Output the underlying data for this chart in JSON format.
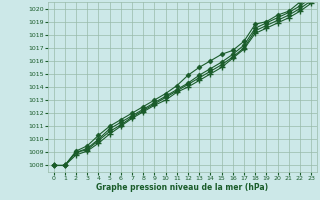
{
  "xlabel": "Graphe pression niveau de la mer (hPa)",
  "bg_color": "#cce8e8",
  "grid_color": "#99bbaa",
  "line_color": "#1a5c2a",
  "marker_color": "#1a5c2a",
  "x": [
    0,
    1,
    2,
    3,
    4,
    5,
    6,
    7,
    8,
    9,
    10,
    11,
    12,
    13,
    14,
    15,
    16,
    17,
    18,
    19,
    20,
    21,
    22,
    23
  ],
  "series": [
    [
      1008.0,
      1008.0,
      1009.1,
      1009.5,
      1010.3,
      1011.0,
      1011.5,
      1012.0,
      1012.5,
      1013.0,
      1013.5,
      1014.1,
      1014.9,
      1015.5,
      1016.0,
      1016.5,
      1016.8,
      1017.5,
      1018.8,
      1019.0,
      1019.5,
      1019.8,
      1020.5,
      1021.0
    ],
    [
      1008.0,
      1008.0,
      1009.0,
      1009.3,
      1010.0,
      1010.8,
      1011.3,
      1011.8,
      1012.3,
      1012.8,
      1013.3,
      1013.8,
      1014.3,
      1014.9,
      1015.4,
      1015.9,
      1016.5,
      1017.2,
      1018.5,
      1018.9,
      1019.3,
      1019.7,
      1020.2,
      1020.8
    ],
    [
      1008.0,
      1008.0,
      1009.0,
      1009.2,
      1009.9,
      1010.6,
      1011.1,
      1011.7,
      1012.2,
      1012.7,
      1013.2,
      1013.7,
      1014.2,
      1014.7,
      1015.2,
      1015.7,
      1016.3,
      1017.0,
      1018.3,
      1018.7,
      1019.1,
      1019.5,
      1020.0,
      1020.6
    ],
    [
      1008.0,
      1008.0,
      1008.8,
      1009.1,
      1009.7,
      1010.4,
      1011.0,
      1011.6,
      1012.1,
      1012.6,
      1013.0,
      1013.6,
      1014.0,
      1014.5,
      1015.0,
      1015.5,
      1016.2,
      1016.9,
      1018.1,
      1018.5,
      1018.9,
      1019.3,
      1019.8,
      1020.4
    ]
  ],
  "ylim": [
    1007.5,
    1020.5
  ],
  "xlim": [
    -0.5,
    23.5
  ],
  "yticks": [
    1008,
    1009,
    1010,
    1011,
    1012,
    1013,
    1014,
    1015,
    1016,
    1017,
    1018,
    1019,
    1020
  ],
  "xticks": [
    0,
    1,
    2,
    3,
    4,
    5,
    6,
    7,
    8,
    9,
    10,
    11,
    12,
    13,
    14,
    15,
    16,
    17,
    18,
    19,
    20,
    21,
    22,
    23
  ]
}
